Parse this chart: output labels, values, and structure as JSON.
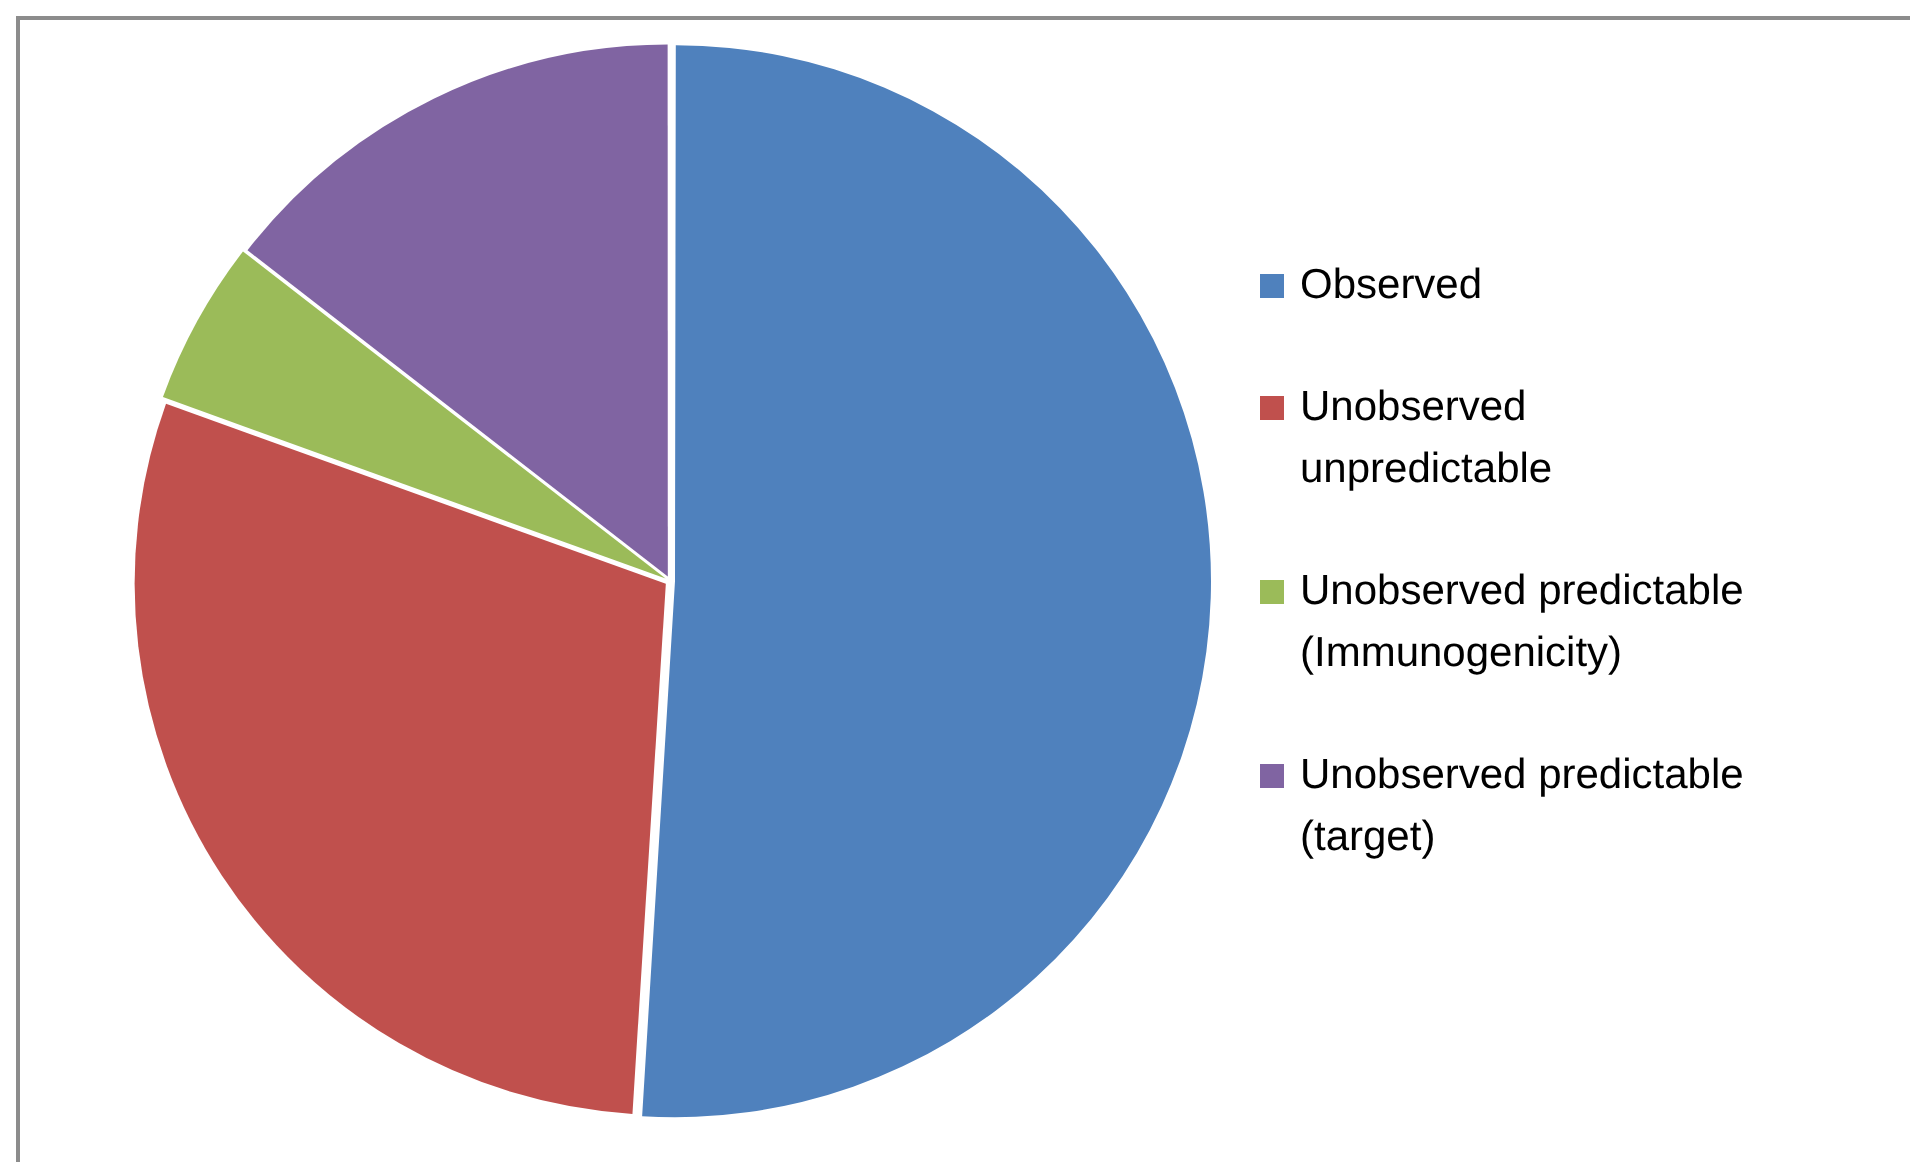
{
  "chart_data": {
    "type": "pie",
    "categories": [
      "Observed",
      "Unobserved unpredictable",
      "Unobserved predictable (Immunogenicity)",
      "Unobserved predictable (target)"
    ],
    "values": [
      51,
      29.5,
      5,
      14.5
    ],
    "colors": [
      "#4f81bd",
      "#c0504d",
      "#9bbb59",
      "#8064a2"
    ],
    "legend": "right"
  }
}
